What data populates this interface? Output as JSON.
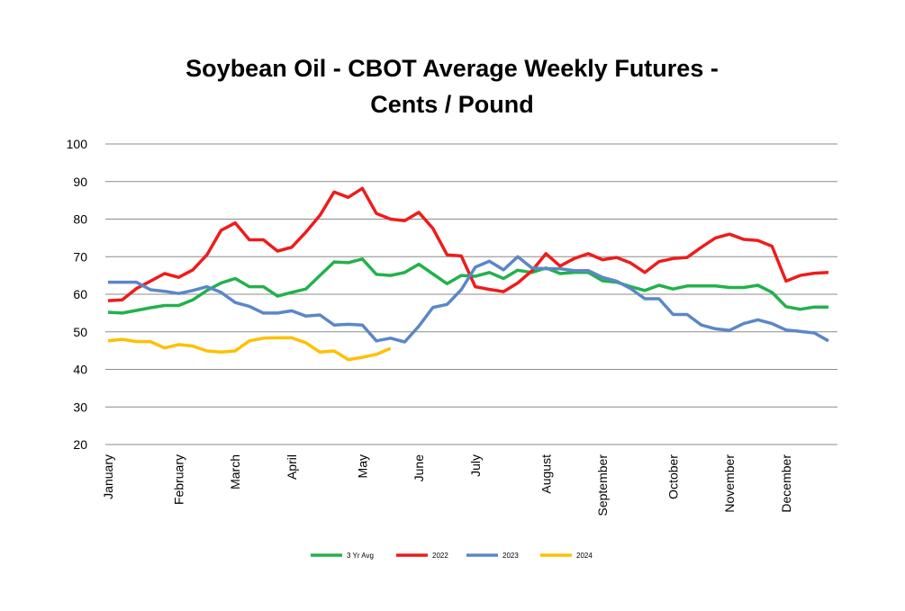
{
  "chart_data": {
    "type": "line",
    "title": [
      "Soybean Oil - CBOT Average Weekly Futures -",
      "Cents / Pound"
    ],
    "categories": [
      "January",
      null,
      null,
      null,
      null,
      "February",
      null,
      null,
      null,
      "March",
      null,
      null,
      null,
      "April",
      null,
      null,
      null,
      null,
      "May",
      null,
      null,
      null,
      "June",
      null,
      null,
      null,
      "July",
      null,
      null,
      null,
      null,
      "August",
      null,
      null,
      null,
      "September",
      null,
      null,
      null,
      null,
      "October",
      null,
      null,
      null,
      "November",
      null,
      null,
      null,
      "December",
      null,
      null,
      null
    ],
    "series": [
      {
        "name": "3 Yr Avg",
        "color": "#22b14c",
        "values": [
          55.2,
          55,
          55.7,
          56.4,
          57,
          57,
          58.5,
          61,
          63,
          64.2,
          62,
          62,
          59.5,
          60.5,
          61.4,
          65,
          68.6,
          68.4,
          69.4,
          65.3,
          65,
          65.8,
          68,
          65.4,
          62.8,
          65,
          64.8,
          65.8,
          64.2,
          66.4,
          65.8,
          67,
          65.5,
          65.8,
          65.8,
          63.6,
          63.2,
          62,
          61,
          62.4,
          61.4,
          62.2,
          62.2,
          62.2,
          61.8,
          61.8,
          62.4,
          60.5,
          56.7,
          56,
          56.6,
          56.6
        ]
      },
      {
        "name": "2022",
        "color": "#ee1c1c",
        "values": [
          58.3,
          58.5,
          61.5,
          63.5,
          65.5,
          64.5,
          66.5,
          70.5,
          77,
          79,
          74.5,
          74.5,
          71.5,
          72.5,
          76.5,
          81,
          87.2,
          85.8,
          88.2,
          81.5,
          80,
          79.6,
          81.8,
          77.5,
          70.5,
          70.2,
          62,
          61.3,
          60.7,
          63,
          66.2,
          70.8,
          67.5,
          69.5,
          70.8,
          69.2,
          69.8,
          68.3,
          65.8,
          68.7,
          69.5,
          69.8,
          72.5,
          75,
          76,
          74.6,
          74.3,
          72.8,
          63.5,
          65,
          65.6,
          65.8
        ]
      },
      {
        "name": "2023",
        "color": "#5b87c8",
        "values": [
          63.2,
          63.2,
          63.2,
          61.2,
          60.8,
          60.2,
          61,
          62,
          60.5,
          57.8,
          56.8,
          55,
          55,
          55.6,
          54.2,
          54.5,
          51.8,
          52,
          51.8,
          47.6,
          48.3,
          47.3,
          51.5,
          56.5,
          57.3,
          61.2,
          67.2,
          68.8,
          66.5,
          70,
          67,
          66.8,
          66.8,
          66.3,
          66.3,
          64.5,
          63.5,
          61.5,
          58.8,
          58.8,
          54.6,
          54.6,
          51.8,
          50.8,
          50.4,
          52.2,
          53.2,
          52.2,
          50.5,
          50.1,
          49.7,
          47.6
        ]
      },
      {
        "name": "2024",
        "color": "#ffc000",
        "values": [
          47.6,
          48,
          47.4,
          47.4,
          45.7,
          46.6,
          46.2,
          44.9,
          44.6,
          44.9,
          47.6,
          48.3,
          48.4,
          48.4,
          47.1,
          44.6,
          44.9,
          42.6,
          43.2,
          44,
          45.6,
          null,
          null,
          null,
          null,
          null,
          null,
          null,
          null,
          null,
          null,
          null,
          null,
          null,
          null,
          null,
          null,
          null,
          null,
          null,
          null,
          null,
          null,
          null,
          null,
          null,
          null,
          null,
          null,
          null,
          null,
          null
        ]
      }
    ],
    "ylim": [
      20,
      100
    ],
    "yticks": [
      20,
      30,
      40,
      50,
      60,
      70,
      80,
      90,
      100
    ],
    "grid": true,
    "legend": "bottom"
  }
}
